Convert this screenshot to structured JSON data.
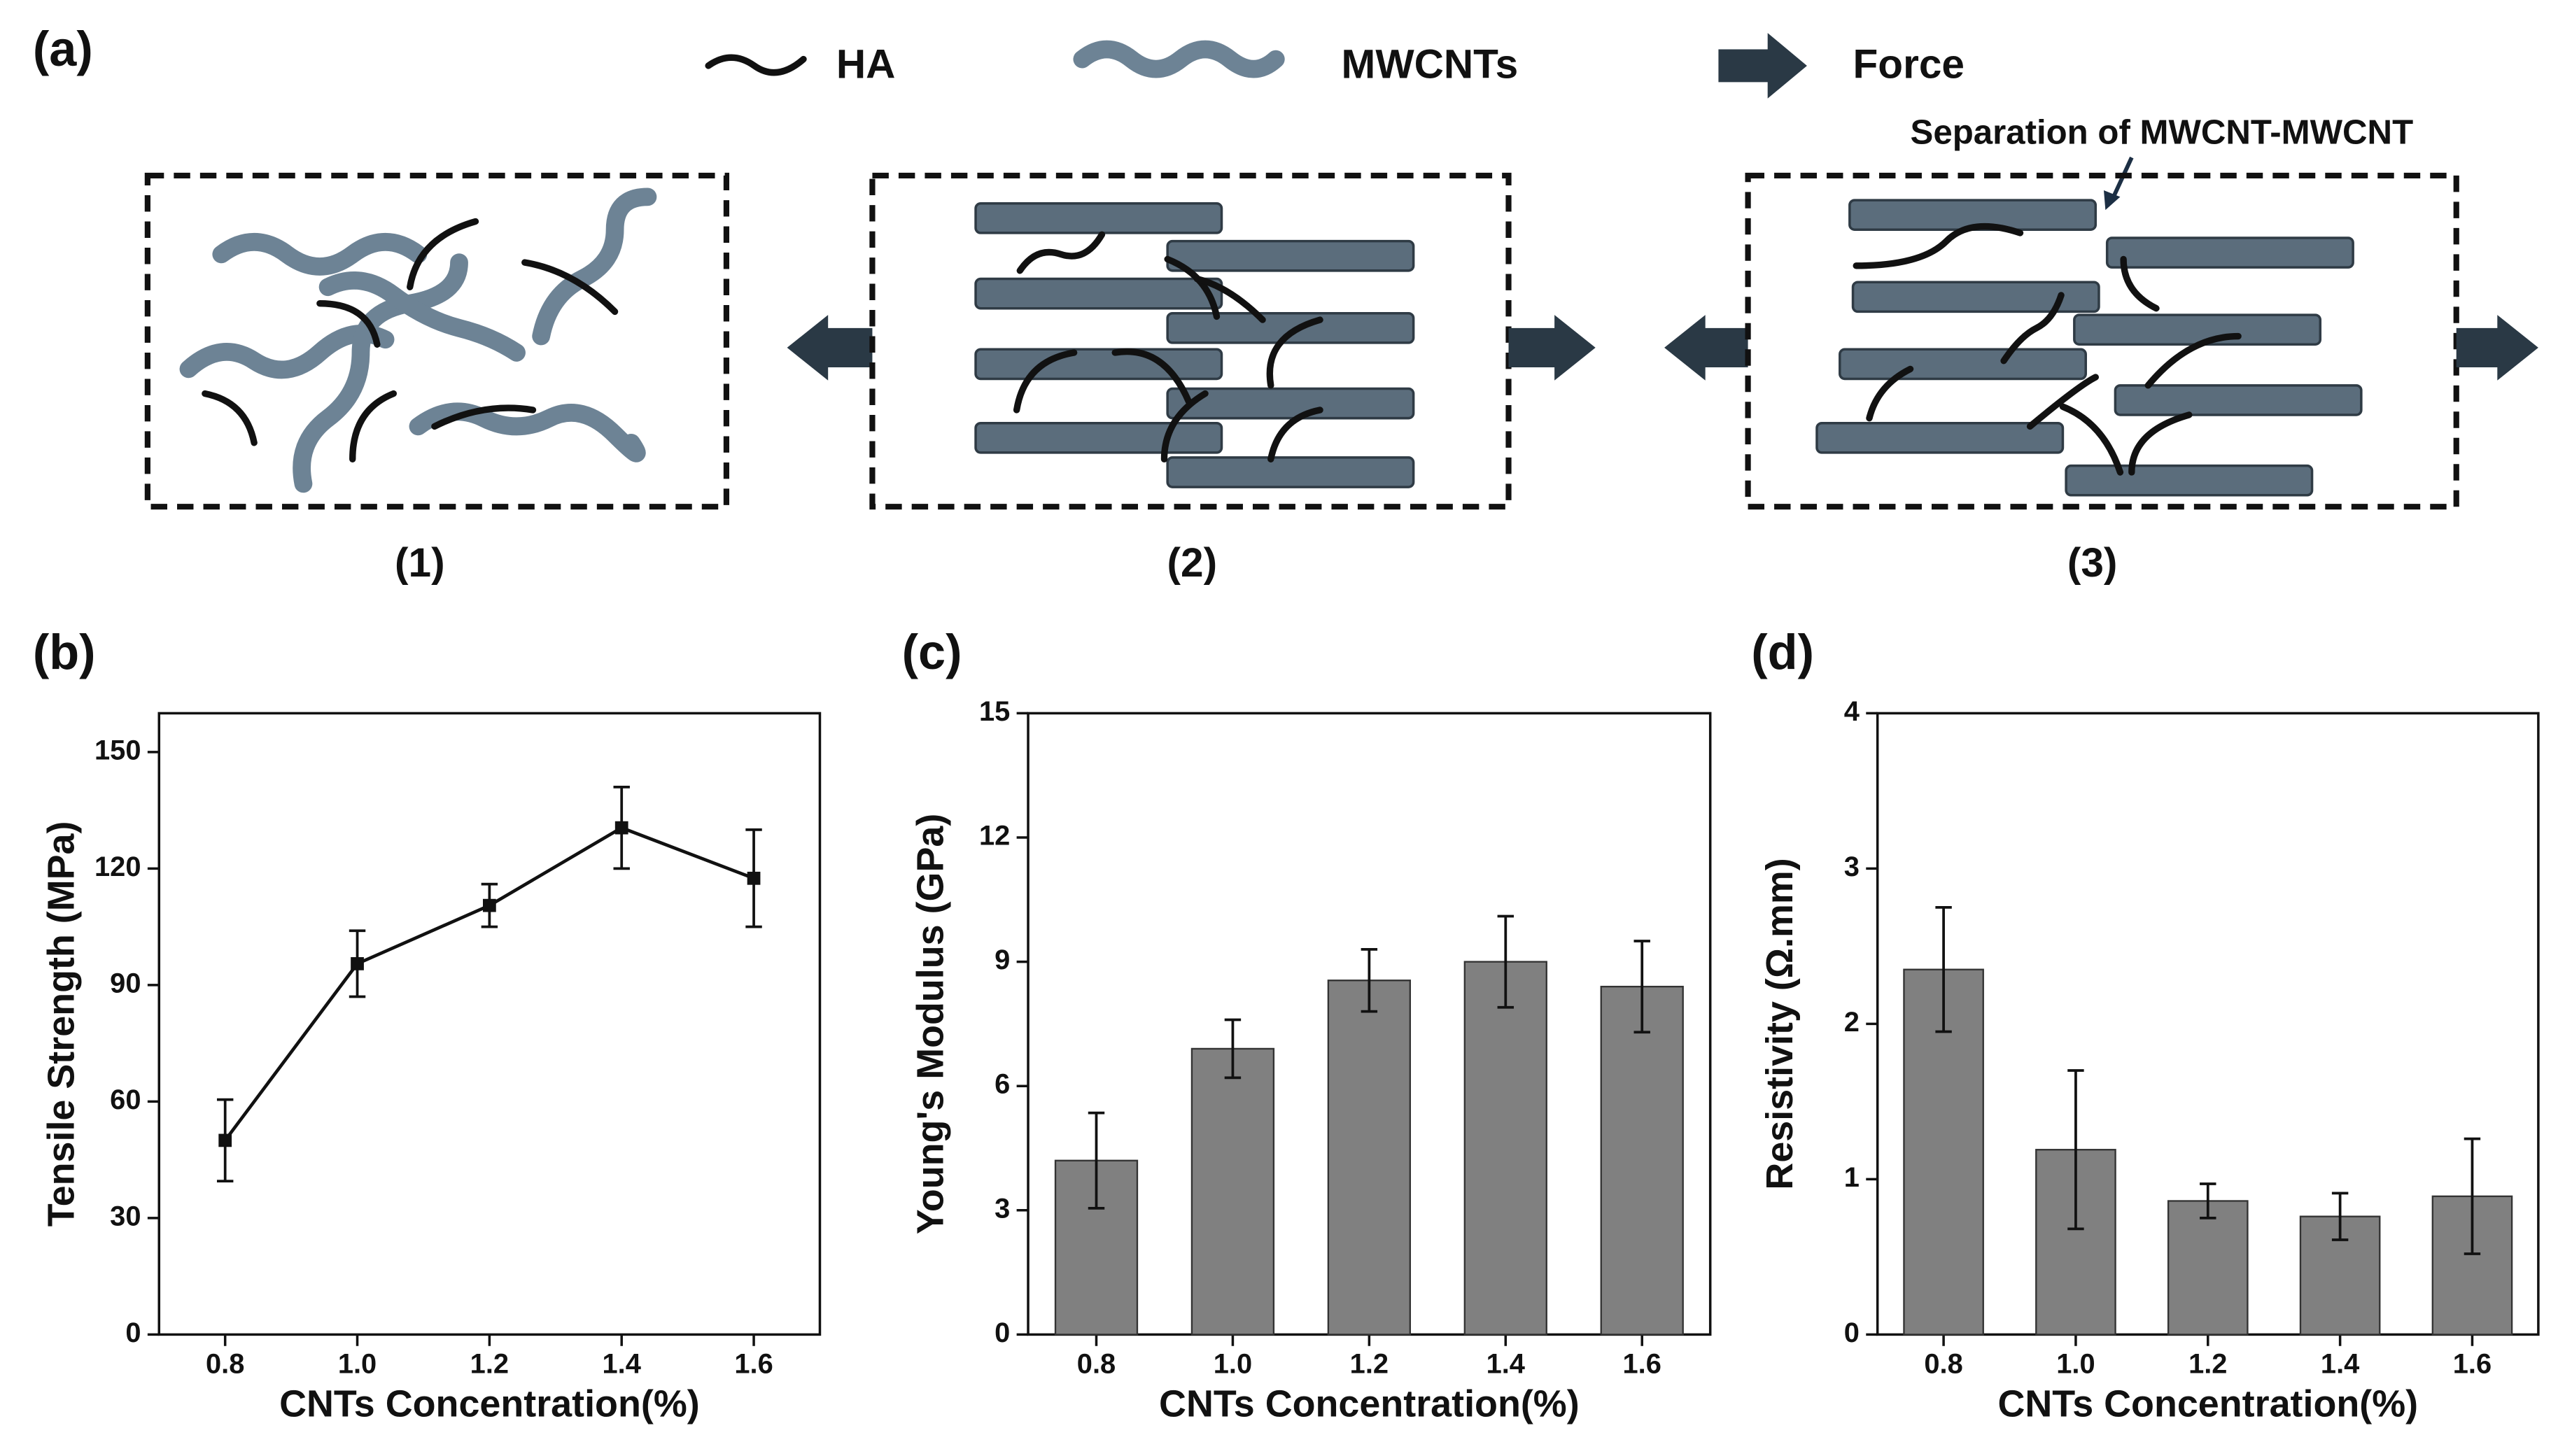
{
  "diagram": {
    "panel_label": "(a)",
    "legend": [
      "HA",
      "MWCNTs",
      "Force"
    ],
    "annotation": "Separation of MWCNT-MWCNT",
    "stages": [
      "(1)",
      "(2)",
      "(3)"
    ]
  },
  "chart_data": [
    {
      "type": "line",
      "panel_label": "(b)",
      "x_label": "CNTs Concentration(%)",
      "y_label": "Tensile Strength (MPa)",
      "x": [
        0.8,
        1.0,
        1.2,
        1.4,
        1.6
      ],
      "values": [
        50,
        95.5,
        110.5,
        130.5,
        117.5
      ],
      "errors": [
        10.5,
        8.5,
        5.5,
        10.5,
        12.5
      ],
      "xlim": [
        0.7,
        1.7
      ],
      "xticks": [
        0.8,
        {
          "value": 1.0,
          "label": "1.0"
        },
        1.2,
        1.4,
        1.6
      ],
      "ylim": [
        0,
        160
      ],
      "yticks": [
        0,
        30,
        60,
        90,
        120,
        150
      ],
      "color": "#111111"
    },
    {
      "type": "bar",
      "panel_label": "(c)",
      "x_label": "CNTs Concentration(%)",
      "y_label": "Young's Modulus (GPa)",
      "categories": [
        "0.8",
        "1.0",
        "1.2",
        "1.4",
        "1.6"
      ],
      "values": [
        4.2,
        6.9,
        8.55,
        9.0,
        8.4
      ],
      "errors": [
        1.15,
        0.7,
        0.75,
        1.1,
        1.1
      ],
      "ylim": [
        0,
        15
      ],
      "yticks": [
        0,
        3,
        6,
        9,
        12,
        15
      ],
      "color": "#808080"
    },
    {
      "type": "bar",
      "panel_label": "(d)",
      "x_label": "CNTs Concentration(%)",
      "y_label": "Resistivity (Ω.mm)",
      "categories": [
        "0.8",
        "1.0",
        "1.2",
        "1.4",
        "1.6"
      ],
      "values": [
        2.35,
        1.19,
        0.86,
        0.76,
        0.89
      ],
      "errors": [
        0.4,
        0.51,
        0.11,
        0.15,
        0.37
      ],
      "ylim": [
        0,
        4
      ],
      "yticks": [
        0,
        1,
        2,
        3,
        4
      ],
      "color": "#808080"
    }
  ]
}
